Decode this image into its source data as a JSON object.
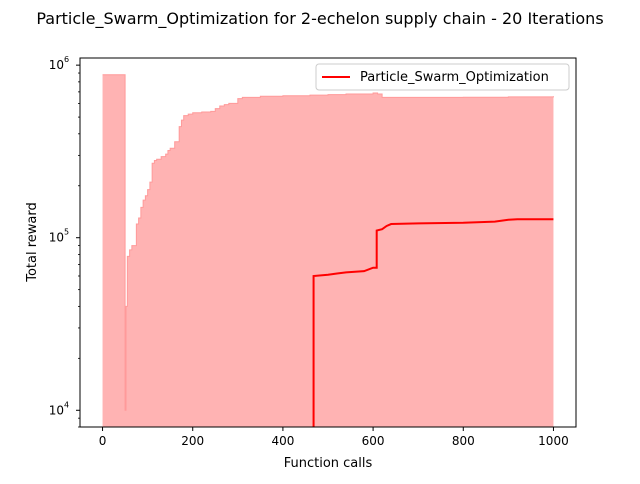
{
  "chart_data": {
    "type": "line",
    "title": "Particle_Swarm_Optimization for 2-echelon supply chain - 20 Iterations",
    "xlabel": "Function calls",
    "ylabel": "Total reward",
    "xlim": [
      -50,
      1050
    ],
    "ylim": [
      8000,
      1100000
    ],
    "yscale": "log",
    "grid": false,
    "legend_position": "top-right",
    "x_ticks": [
      0,
      200,
      400,
      600,
      800,
      1000
    ],
    "x_tick_labels": [
      "0",
      "200",
      "400",
      "600",
      "800",
      "1000"
    ],
    "y_ticks": [
      10000,
      100000,
      1000000
    ],
    "y_tick_labels": [
      "10",
      "10",
      "10"
    ],
    "y_tick_exponents": [
      "4",
      "5",
      "6"
    ],
    "series": [
      {
        "name": "Particle_Swarm_Optimization",
        "color": "#ff0000",
        "x": [
          468,
          468,
          500,
          520,
          540,
          580,
          600,
          608,
          608,
          620,
          630,
          640,
          700,
          800,
          870,
          900,
          920,
          1000
        ],
        "y": [
          8000,
          60000,
          61000,
          62000,
          63000,
          64000,
          67000,
          67000,
          110000,
          112000,
          117000,
          120000,
          121000,
          122000,
          124000,
          127000,
          128000,
          128000
        ]
      }
    ],
    "band": {
      "color": "#ffb3b3",
      "edge_color": "#ff9a9a",
      "x": [
        0,
        50,
        52,
        55,
        60,
        65,
        70,
        75,
        80,
        85,
        90,
        95,
        100,
        105,
        110,
        115,
        120,
        130,
        140,
        145,
        150,
        160,
        170,
        175,
        180,
        190,
        200,
        220,
        240,
        250,
        260,
        270,
        280,
        300,
        310,
        350,
        400,
        460,
        500,
        540,
        600,
        610,
        620,
        700,
        800,
        900,
        1000
      ],
      "upper": [
        880000,
        10000,
        40000,
        78000,
        85000,
        90000,
        90000,
        120000,
        130000,
        150000,
        165000,
        175000,
        190000,
        210000,
        270000,
        280000,
        285000,
        295000,
        305000,
        320000,
        330000,
        360000,
        440000,
        480000,
        510000,
        520000,
        530000,
        535000,
        540000,
        560000,
        580000,
        590000,
        600000,
        640000,
        650000,
        660000,
        665000,
        670000,
        675000,
        680000,
        690000,
        680000,
        650000,
        650000,
        652000,
        655000,
        660000
      ],
      "lower": [
        8000,
        8000,
        8000,
        8000,
        8000,
        8000,
        8000,
        8000,
        8000,
        8000,
        8000,
        8000,
        8000,
        8000,
        8000,
        8000,
        8000,
        8000,
        8000,
        8000,
        8000,
        8000,
        8000,
        8000,
        8000,
        8000,
        8000,
        8000,
        8000,
        8000,
        8000,
        8000,
        8000,
        8000,
        8000,
        8000,
        8000,
        8000,
        8000,
        8000,
        8000,
        8000,
        8000,
        8000,
        8000,
        8000,
        8000
      ]
    }
  }
}
